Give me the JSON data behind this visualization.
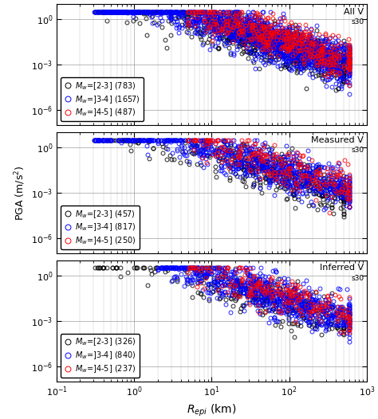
{
  "panels": [
    {
      "title": "All V",
      "title_sub": "s30",
      "legend_labels": [
        "$M_w$=[2-3] (783)",
        "$M_w$=]3-4] (1657)",
        "$M_w$=]4-5] (487)"
      ],
      "counts": [
        783,
        1657,
        487
      ],
      "colors": [
        "#000000",
        "#0000ff",
        "#ff0000"
      ],
      "r_min": [
        0.3,
        0.3,
        5.0
      ],
      "r_max": [
        500,
        600,
        600
      ],
      "r_center_log": [
        1.8,
        1.9,
        2.0
      ],
      "pga_intercept": [
        -2.0,
        -1.7,
        -1.4
      ],
      "pga_scatter": [
        0.7,
        0.65,
        0.6
      ]
    },
    {
      "title": "Measured V",
      "title_sub": "s30",
      "legend_labels": [
        "$M_w$=[2-3] (457)",
        "$M_w$=]3-4] (817)",
        "$M_w$=]4-5] (250)"
      ],
      "counts": [
        457,
        817,
        250
      ],
      "colors": [
        "#000000",
        "#0000ff",
        "#ff0000"
      ],
      "r_min": [
        0.3,
        0.3,
        5.0
      ],
      "r_max": [
        500,
        600,
        600
      ],
      "r_center_log": [
        1.8,
        1.9,
        2.0
      ],
      "pga_intercept": [
        -2.0,
        -1.7,
        -1.4
      ],
      "pga_scatter": [
        0.7,
        0.65,
        0.6
      ]
    },
    {
      "title": "Inferred V",
      "title_sub": "s30",
      "legend_labels": [
        "$M_w$=[2-3] (326)",
        "$M_w$=]3-4] (840)",
        "$M_w$=]4-5] (237)"
      ],
      "counts": [
        326,
        840,
        237
      ],
      "colors": [
        "#000000",
        "#0000ff",
        "#ff0000"
      ],
      "r_min": [
        0.3,
        2.0,
        5.0
      ],
      "r_max": [
        500,
        600,
        600
      ],
      "r_center_log": [
        1.8,
        1.9,
        2.0
      ],
      "pga_intercept": [
        -2.0,
        -1.7,
        -1.4
      ],
      "pga_scatter": [
        0.7,
        0.65,
        0.6
      ]
    }
  ],
  "xlim": [
    0.1,
    1000
  ],
  "ylim": [
    1e-07,
    10
  ],
  "yticks": [
    1e-06,
    0.001,
    1.0
  ],
  "figsize": [
    4.74,
    5.26
  ],
  "dpi": 100,
  "bg_color": "#ffffff",
  "marker_size": 3.5,
  "marker_linewidth": 0.7,
  "grid_color": "#888888",
  "slope": -1.6
}
